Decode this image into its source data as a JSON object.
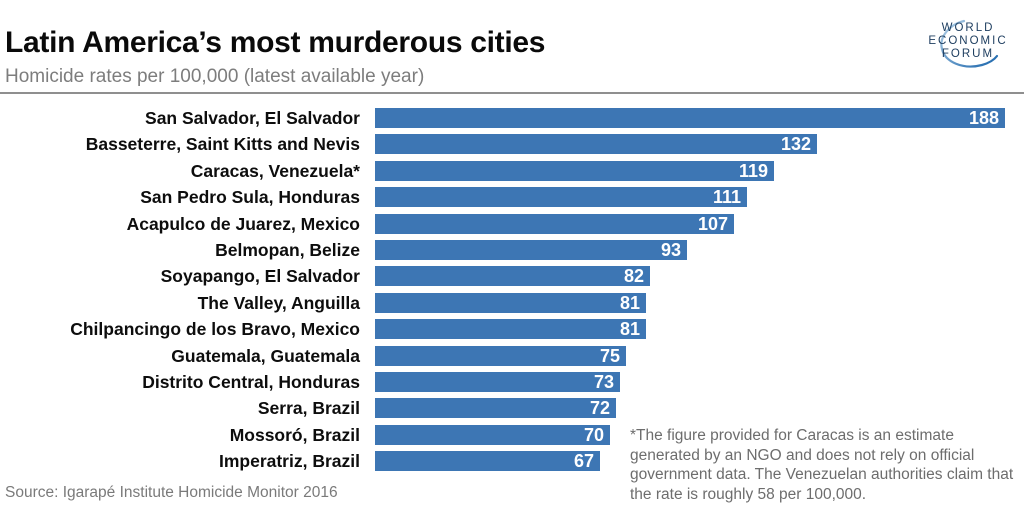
{
  "header": {
    "title": "Latin America’s most murderous cities",
    "subtitle": "Homicide rates per 100,000 (latest available year)"
  },
  "logo": {
    "name": "World Economic Forum",
    "lines": [
      "WORLD",
      "ECONOMIC",
      "FORUM"
    ],
    "text_color": "#1c3c5e",
    "swoosh_color_top": "#a6c7e2",
    "swoosh_color_bottom": "#1e68ad"
  },
  "chart_data": {
    "type": "bar",
    "orientation": "horizontal",
    "title": "Latin America’s most murderous cities",
    "subtitle": "Homicide rates per 100,000 (latest available year)",
    "categories": [
      "San Salvador, El Salvador",
      "Basseterre, Saint Kitts and Nevis",
      "Caracas, Venezuela*",
      "San Pedro Sula, Honduras",
      "Acapulco de Juarez, Mexico",
      "Belmopan, Belize",
      "Soyapango, El Salvador",
      "The Valley, Anguilla",
      "Chilpancingo de los Bravo, Mexico",
      "Guatemala, Guatemala",
      "Distrito Central, Honduras",
      "Serra, Brazil",
      "Mossoró, Brazil",
      "Imperatriz, Brazil"
    ],
    "values": [
      188,
      132,
      119,
      111,
      107,
      93,
      82,
      81,
      81,
      75,
      73,
      72,
      70,
      67
    ],
    "xlim": [
      0,
      188
    ],
    "grid": false,
    "legend": false,
    "bar_color": "#3D76B4",
    "value_label_color": "#FFFFFF",
    "value_labels_inside_bar_right": true
  },
  "footnote": "*The figure provided for Caracas is an estimate generated by an NGO and does not rely on official government data. The Venezuelan authorities claim that the rate is roughly 58 per 100,000.",
  "source": "Source: Igarapé Institute Homicide Monitor 2016"
}
